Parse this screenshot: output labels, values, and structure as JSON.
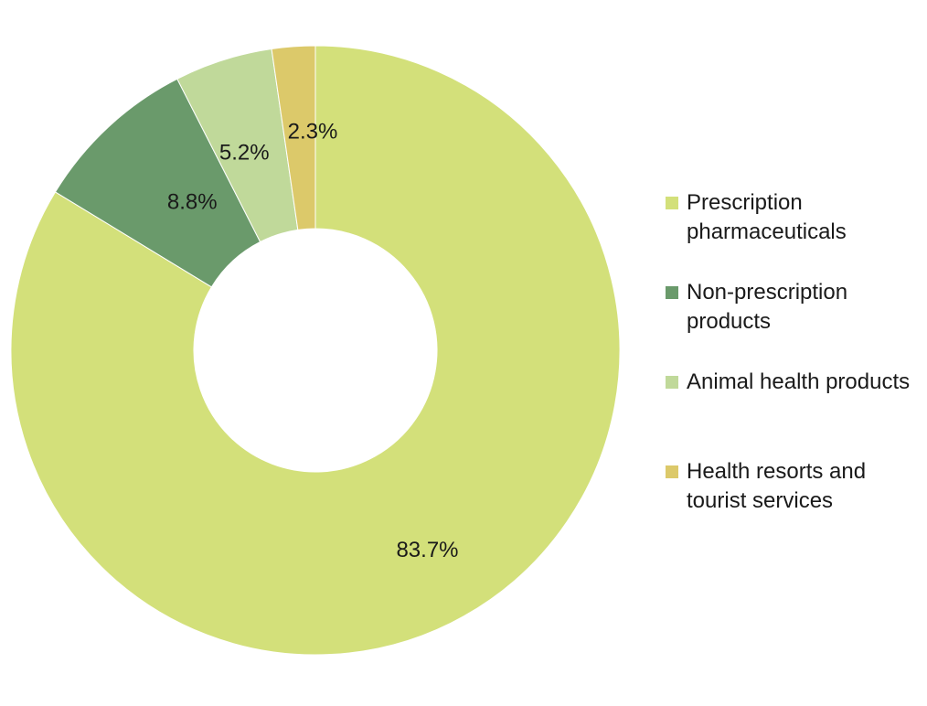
{
  "chart_data": {
    "type": "pie",
    "variant": "donut",
    "title": "",
    "legend_position": "right",
    "slices": [
      {
        "label": "Prescription pharmaceuticals",
        "value": 83.7,
        "value_label": "83.7%",
        "color": "#d3e07a"
      },
      {
        "label": "Non-prescription products",
        "value": 8.8,
        "value_label": "8.8%",
        "color": "#6a9a6b"
      },
      {
        "label": "Animal health products",
        "value": 5.2,
        "value_label": "5.2%",
        "color": "#c0d99a"
      },
      {
        "label": "Health resorts and tourist services",
        "value": 2.3,
        "value_label": "2.3%",
        "color": "#dcc96a"
      }
    ]
  },
  "legend": {
    "items": [
      {
        "line1": "Prescription",
        "line2": "pharmaceuticals"
      },
      {
        "line1": "Non-prescription",
        "line2": "products"
      },
      {
        "line1": "Animal health products",
        "line2": ""
      },
      {
        "line1": "Health resorts and",
        "line2": "tourist services"
      }
    ]
  }
}
